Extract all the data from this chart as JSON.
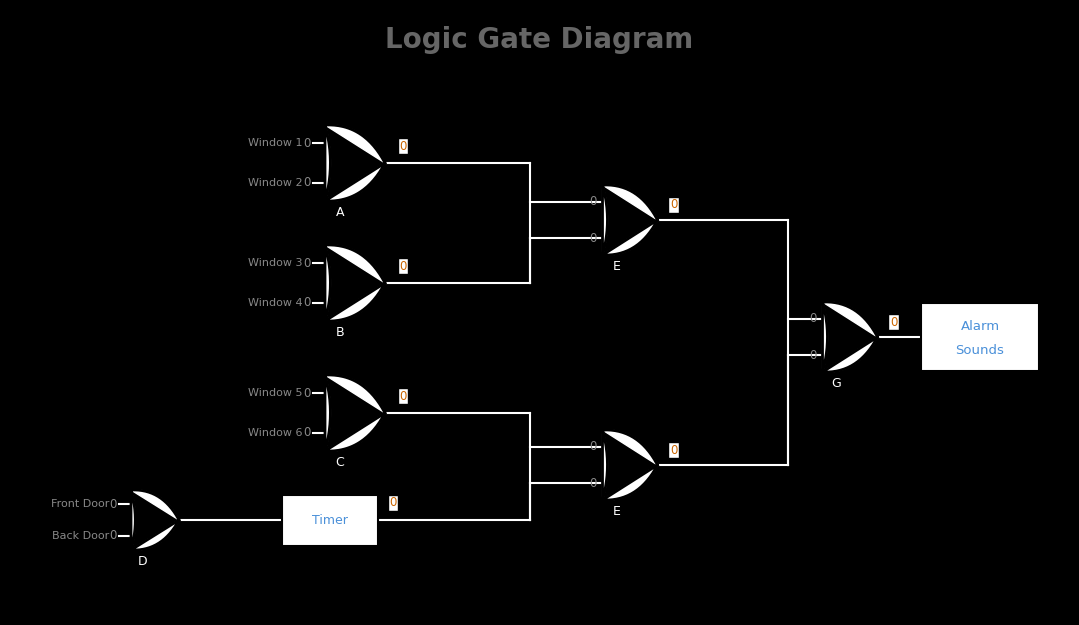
{
  "title": "Logic Gate Diagram",
  "title_fontsize": 20,
  "title_fontweight": "bold",
  "title_color": "#666666",
  "bg_color": "#000000",
  "gate_color": "#ffffff",
  "line_color": "#ffffff",
  "text_color": "#888888",
  "label_color": "#4a90d9",
  "value_box_bg": "#ffffff",
  "value_box_fg": "#cc6600",
  "figsize": [
    10.79,
    6.25
  ],
  "dpi": 100,
  "xlim": [
    0,
    10.79
  ],
  "ylim": [
    0,
    6.25
  ]
}
